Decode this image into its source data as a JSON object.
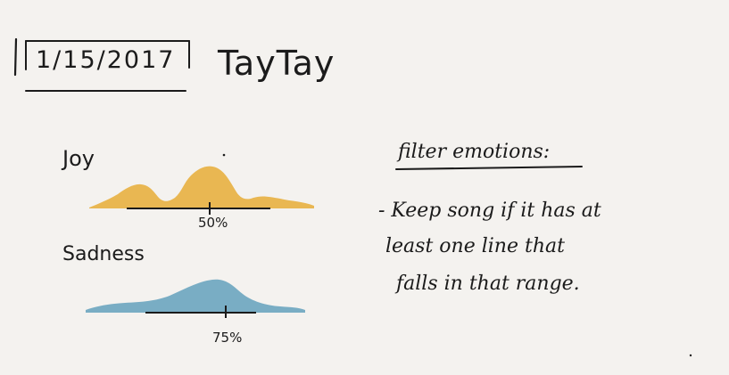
{
  "header": {
    "date": "1/15/2017",
    "artist": "TayTay"
  },
  "emotions": [
    {
      "label": "Joy",
      "marker": "50%",
      "color": "#e9b752"
    },
    {
      "label": "Sadness",
      "marker": "75%",
      "color": "#79adc4"
    }
  ],
  "notes": {
    "title": "filter emotions:",
    "lines": [
      "- Keep song if it has at",
      "least one line that",
      "falls in that range."
    ]
  }
}
